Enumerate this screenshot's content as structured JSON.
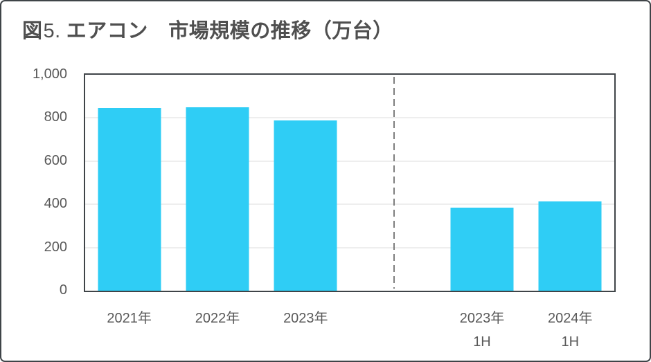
{
  "title": {
    "figure": "図",
    "number": "5.",
    "main": "エアコン　市場規模の推移（万台）"
  },
  "chart_data": {
    "type": "bar",
    "title": "図5. エアコン　市場規模の推移（万台）",
    "categories": [
      "2021年",
      "2022年",
      "2023年",
      "",
      "2023年\n1H",
      "2024年\n1H"
    ],
    "values": [
      845,
      850,
      790,
      null,
      385,
      415
    ],
    "xlabel": "",
    "ylabel": "",
    "ylim": [
      0,
      1000
    ],
    "yticks": [
      0,
      200,
      400,
      600,
      800,
      1000
    ],
    "ytick_labels": [
      "0",
      "200",
      "400",
      "600",
      "800",
      "1,000"
    ],
    "gridline_values": [
      200,
      400,
      600,
      800
    ],
    "bar_color": "#2FCDF5",
    "divider_slot_index": 3,
    "legend": "none",
    "grid": "horizontal"
  },
  "colors": {
    "bar": "#2FCDF5",
    "grid": "#EEEEEE",
    "axis_text": "#595959",
    "title_text": "#4F4F4F",
    "frame_border": "#3F4448",
    "divider": "#7D7D7D",
    "background": "#FFFFFF"
  }
}
